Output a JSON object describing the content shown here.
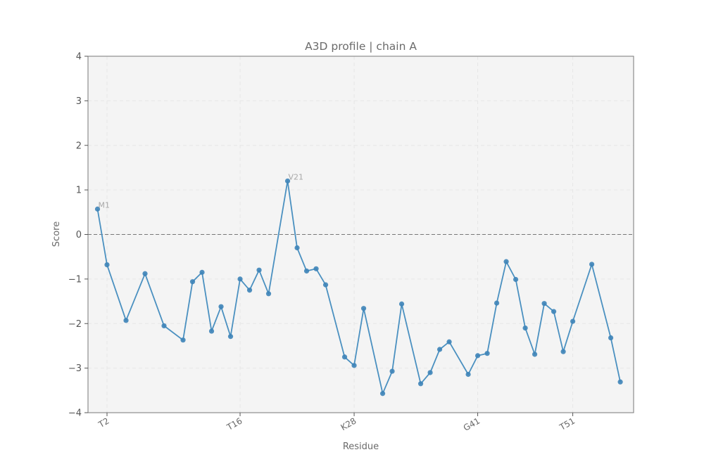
{
  "chart_data": {
    "type": "line",
    "title": "A3D profile | chain A",
    "xlabel": "Residue",
    "ylabel": "Score",
    "ylim": [
      -4,
      4
    ],
    "yticks": [
      -4,
      -3,
      -2,
      -1,
      0,
      1,
      2,
      3,
      4
    ],
    "ytick_labels": [
      "−4",
      "−3",
      "−2",
      "−1",
      "0",
      "1",
      "2",
      "3",
      "4"
    ],
    "xlim": [
      0,
      57.4
    ],
    "grid": true,
    "reference_line": 0,
    "colors": {
      "line": "#4a90c0",
      "point": "#3e84b8",
      "reference": "#777777",
      "plot_background": "#f4f4f4",
      "frame": "#777777"
    },
    "xtick_labels": [
      {
        "x": 2,
        "label": "T2"
      },
      {
        "x": 16,
        "label": "T16"
      },
      {
        "x": 28,
        "label": "K28"
      },
      {
        "x": 41,
        "label": "G41"
      },
      {
        "x": 51,
        "label": "T51"
      }
    ],
    "annotations": [
      {
        "x": 1,
        "y": 0.57,
        "text": "M1"
      },
      {
        "x": 21,
        "y": 1.2,
        "text": "V21"
      }
    ],
    "series": [
      {
        "x": [
          1,
          2,
          4,
          6,
          8,
          10,
          11,
          12,
          13,
          14,
          15,
          16,
          17,
          18,
          19,
          21,
          22,
          23,
          24,
          25,
          27,
          28,
          29,
          31,
          32,
          33,
          35,
          36,
          37,
          38,
          40,
          41,
          42,
          43,
          44,
          45,
          46,
          47,
          48,
          49,
          50,
          51,
          53,
          55,
          56
        ],
        "y": [
          0.57,
          -0.68,
          -1.93,
          -0.88,
          -2.05,
          -2.37,
          -1.06,
          -0.85,
          -2.17,
          -1.62,
          -2.29,
          -1.0,
          -1.25,
          -0.8,
          -1.33,
          1.2,
          -0.3,
          -0.82,
          -0.77,
          -1.13,
          -2.75,
          -2.94,
          -1.66,
          -3.57,
          -3.07,
          -1.56,
          -3.35,
          -3.1,
          -2.58,
          -2.41,
          -3.14,
          -2.72,
          -2.67,
          -1.54,
          -0.61,
          -1.01,
          -2.1,
          -2.69,
          -1.55,
          -1.73,
          -2.63,
          -1.95,
          -0.67,
          -2.32,
          -3.31
        ]
      }
    ]
  }
}
